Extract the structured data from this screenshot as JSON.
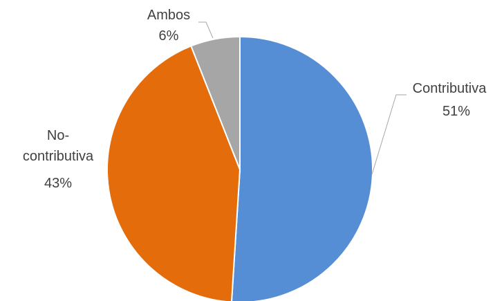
{
  "chart_data": {
    "type": "pie",
    "slices": [
      {
        "name": "Contributiva",
        "value": 51,
        "label": "51%",
        "color": "#558ed5"
      },
      {
        "name": "No-contributiva",
        "value": 43,
        "label": "43%",
        "color": "#e46c0a"
      },
      {
        "name": "Ambos",
        "value": 6,
        "label": "6%",
        "color": "#a6a6a6"
      }
    ],
    "start": "12 o'clock",
    "direction": "clockwise",
    "legend": "none"
  }
}
